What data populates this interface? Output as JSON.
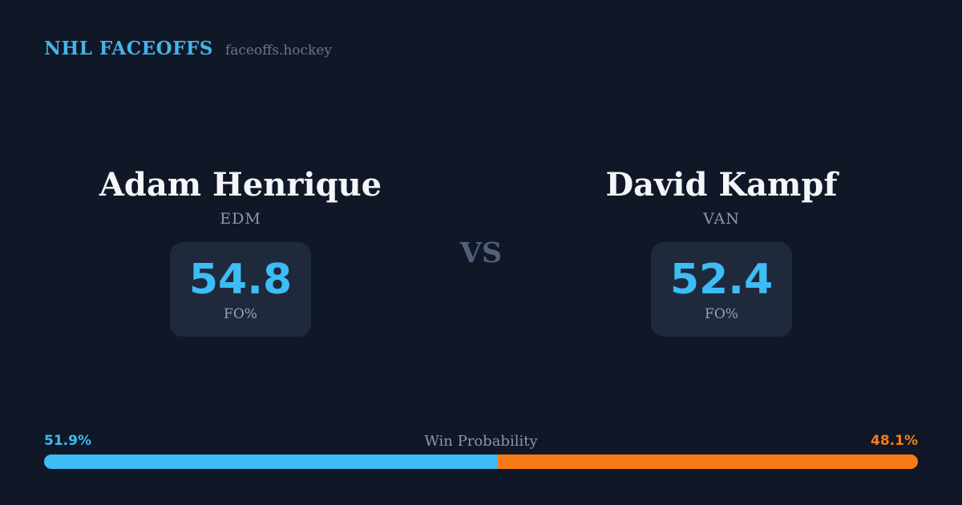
{
  "colors": {
    "background": "#101827",
    "card_background": "#1e293b",
    "brand_blue": "#47b3ea",
    "accent_blue": "#3dbcf6",
    "accent_orange": "#f97b17",
    "name_white": "#f4f6f9",
    "muted_gray": "#8d97a9",
    "vs_gray": "#50607b"
  },
  "header": {
    "brand": "NHL FACEOFFS",
    "site": "faceoffs.hockey"
  },
  "matchup": {
    "vs_label": "VS",
    "players": [
      {
        "name": "Adam Henrique",
        "team": "EDM",
        "stat_value": "54.8",
        "stat_label": "FO%"
      },
      {
        "name": "David Kampf",
        "team": "VAN",
        "stat_value": "52.4",
        "stat_label": "FO%"
      }
    ]
  },
  "win_probability": {
    "title": "Win Probability",
    "left_label": "51.9%",
    "right_label": "48.1%",
    "left_value": 51.9,
    "right_value": 48.1
  }
}
